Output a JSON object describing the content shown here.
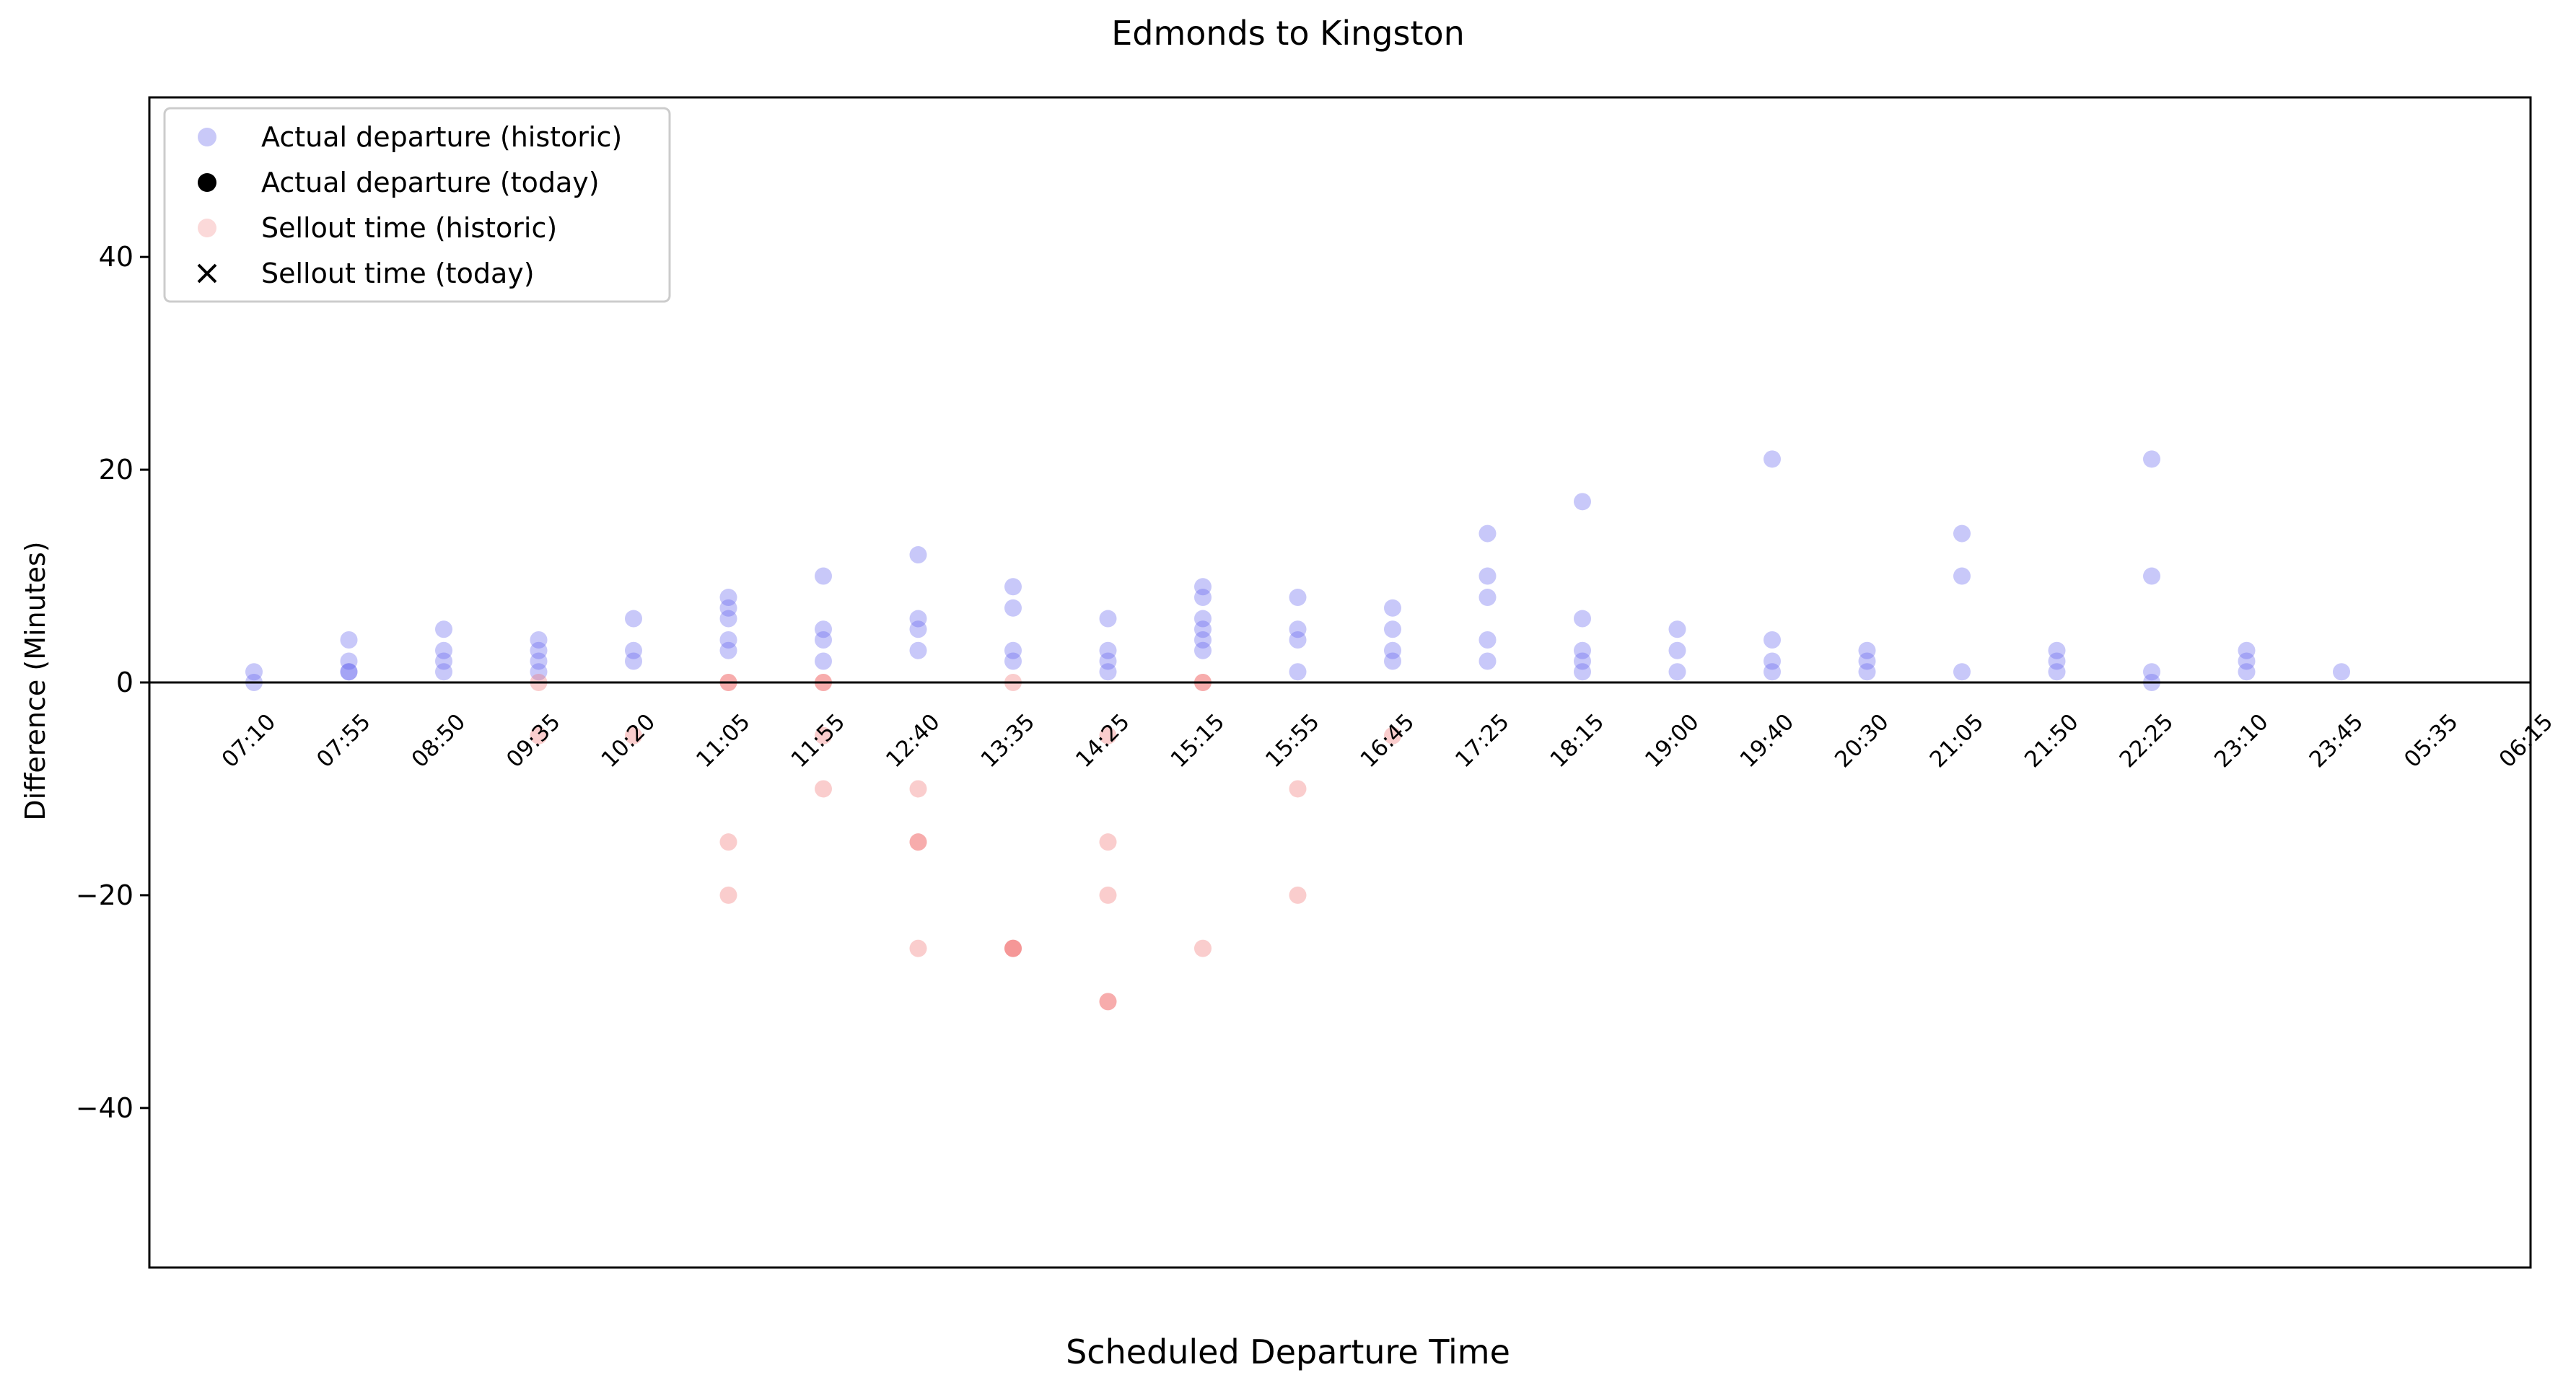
{
  "chart_data": {
    "type": "scatter",
    "title": "Edmonds to Kingston",
    "xlabel": "Scheduled Departure Time",
    "ylabel": "Difference (Minutes)",
    "ylim": [
      -55,
      55
    ],
    "yticks": [
      -40,
      -20,
      0,
      20,
      40
    ],
    "x_is_categorical": true,
    "categories": [
      "07:10",
      "07:55",
      "08:50",
      "09:35",
      "10:20",
      "11:05",
      "11:55",
      "12:40",
      "13:35",
      "14:25",
      "15:15",
      "15:55",
      "16:45",
      "17:25",
      "18:15",
      "19:00",
      "19:40",
      "20:30",
      "21:05",
      "21:50",
      "22:25",
      "23:10",
      "23:45",
      "05:35",
      "06:15"
    ],
    "zero_line": true,
    "grid": false,
    "legend": {
      "position": "top-left",
      "entries": [
        {
          "label": "Actual departure (historic)",
          "marker": "circle",
          "color": "#7777ee"
        },
        {
          "label": "Actual departure (today)",
          "marker": "circle",
          "color": "#000000"
        },
        {
          "label": "Sellout time (historic)",
          "marker": "circle",
          "color": "#f5a0a0"
        },
        {
          "label": "Sellout time (today)",
          "marker": "x",
          "color": "#000000"
        }
      ]
    },
    "series": [
      {
        "name": "Actual departure (historic)",
        "color": "#6060ee",
        "alpha": 0.35,
        "points": [
          [
            "07:10",
            1
          ],
          [
            "07:10",
            0
          ],
          [
            "07:55",
            4
          ],
          [
            "07:55",
            2
          ],
          [
            "07:55",
            1
          ],
          [
            "07:55",
            1
          ],
          [
            "08:50",
            5
          ],
          [
            "08:50",
            3
          ],
          [
            "08:50",
            2
          ],
          [
            "08:50",
            1
          ],
          [
            "09:35",
            4
          ],
          [
            "09:35",
            3
          ],
          [
            "09:35",
            2
          ],
          [
            "09:35",
            1
          ],
          [
            "10:20",
            6
          ],
          [
            "10:20",
            3
          ],
          [
            "10:20",
            2
          ],
          [
            "11:05",
            8
          ],
          [
            "11:05",
            7
          ],
          [
            "11:05",
            6
          ],
          [
            "11:05",
            4
          ],
          [
            "11:05",
            3
          ],
          [
            "11:55",
            10
          ],
          [
            "11:55",
            5
          ],
          [
            "11:55",
            4
          ],
          [
            "11:55",
            2
          ],
          [
            "12:40",
            12
          ],
          [
            "12:40",
            6
          ],
          [
            "12:40",
            5
          ],
          [
            "12:40",
            3
          ],
          [
            "13:35",
            9
          ],
          [
            "13:35",
            7
          ],
          [
            "13:35",
            3
          ],
          [
            "13:35",
            2
          ],
          [
            "14:25",
            6
          ],
          [
            "14:25",
            3
          ],
          [
            "14:25",
            2
          ],
          [
            "14:25",
            1
          ],
          [
            "15:15",
            9
          ],
          [
            "15:15",
            8
          ],
          [
            "15:15",
            6
          ],
          [
            "15:15",
            5
          ],
          [
            "15:15",
            4
          ],
          [
            "15:15",
            3
          ],
          [
            "15:55",
            8
          ],
          [
            "15:55",
            5
          ],
          [
            "15:55",
            4
          ],
          [
            "15:55",
            1
          ],
          [
            "16:45",
            7
          ],
          [
            "16:45",
            5
          ],
          [
            "16:45",
            3
          ],
          [
            "16:45",
            2
          ],
          [
            "17:25",
            14
          ],
          [
            "17:25",
            10
          ],
          [
            "17:25",
            8
          ],
          [
            "17:25",
            4
          ],
          [
            "17:25",
            2
          ],
          [
            "18:15",
            17
          ],
          [
            "18:15",
            6
          ],
          [
            "18:15",
            3
          ],
          [
            "18:15",
            2
          ],
          [
            "18:15",
            1
          ],
          [
            "19:00",
            5
          ],
          [
            "19:00",
            3
          ],
          [
            "19:00",
            1
          ],
          [
            "19:40",
            21
          ],
          [
            "19:40",
            4
          ],
          [
            "19:40",
            2
          ],
          [
            "19:40",
            1
          ],
          [
            "20:30",
            3
          ],
          [
            "20:30",
            2
          ],
          [
            "20:30",
            1
          ],
          [
            "21:05",
            14
          ],
          [
            "21:05",
            10
          ],
          [
            "21:05",
            1
          ],
          [
            "21:50",
            3
          ],
          [
            "21:50",
            2
          ],
          [
            "21:50",
            1
          ],
          [
            "22:25",
            21
          ],
          [
            "22:25",
            10
          ],
          [
            "22:25",
            1
          ],
          [
            "22:25",
            0
          ],
          [
            "23:10",
            3
          ],
          [
            "23:10",
            2
          ],
          [
            "23:10",
            1
          ],
          [
            "23:45",
            1
          ]
        ]
      },
      {
        "name": "Sellout time (historic)",
        "color": "#f07070",
        "alpha": 0.35,
        "points": [
          [
            "09:35",
            0
          ],
          [
            "09:35",
            -5
          ],
          [
            "10:20",
            -5
          ],
          [
            "11:05",
            0
          ],
          [
            "11:05",
            0
          ],
          [
            "11:05",
            -15
          ],
          [
            "11:05",
            -20
          ],
          [
            "11:55",
            0
          ],
          [
            "11:55",
            0
          ],
          [
            "11:55",
            -5
          ],
          [
            "11:55",
            -10
          ],
          [
            "12:40",
            -10
          ],
          [
            "12:40",
            -15
          ],
          [
            "12:40",
            -15
          ],
          [
            "12:40",
            -25
          ],
          [
            "13:35",
            0
          ],
          [
            "13:35",
            -25
          ],
          [
            "13:35",
            -25
          ],
          [
            "13:35",
            -25
          ],
          [
            "14:25",
            -5
          ],
          [
            "14:25",
            -15
          ],
          [
            "14:25",
            -20
          ],
          [
            "14:25",
            -30
          ],
          [
            "14:25",
            -30
          ],
          [
            "15:15",
            0
          ],
          [
            "15:15",
            0
          ],
          [
            "15:15",
            -25
          ],
          [
            "15:55",
            -10
          ],
          [
            "15:55",
            -20
          ],
          [
            "16:45",
            -5
          ]
        ]
      }
    ]
  }
}
